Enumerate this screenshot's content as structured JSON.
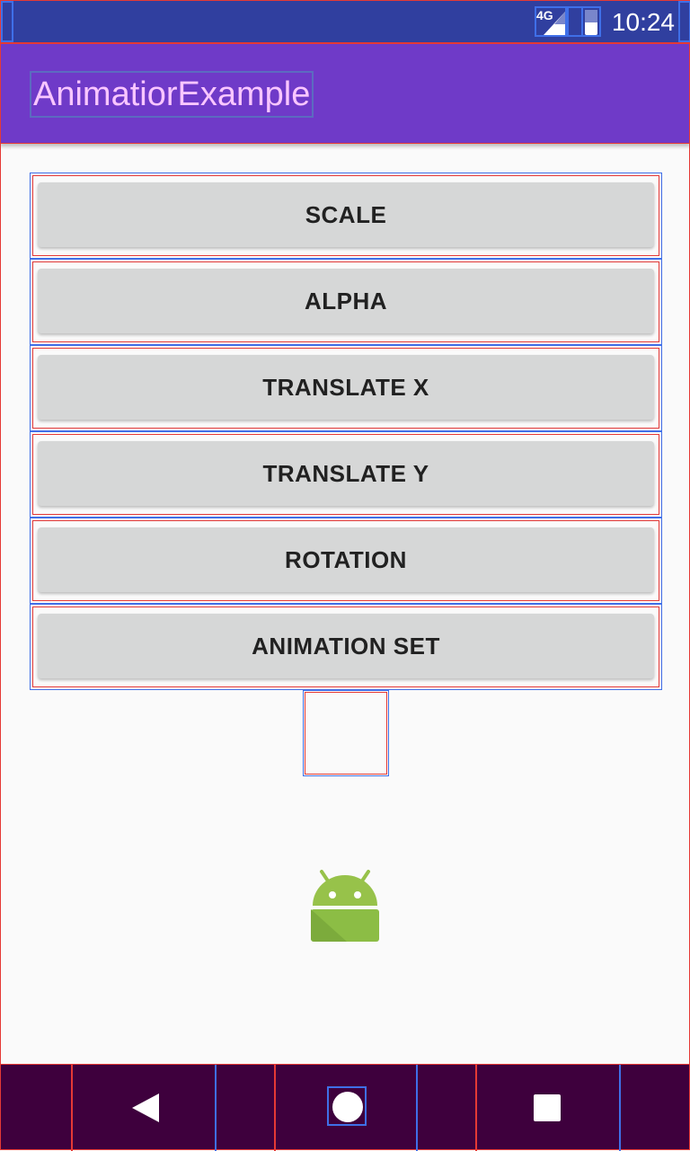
{
  "status_bar": {
    "network": "4G",
    "time": "10:24"
  },
  "app_bar": {
    "title": "AnimatiorExample"
  },
  "buttons": [
    {
      "label": "SCALE"
    },
    {
      "label": "ALPHA"
    },
    {
      "label": "TRANSLATE X"
    },
    {
      "label": "TRANSLATE Y"
    },
    {
      "label": "ROTATION"
    },
    {
      "label": "ANIMATION SET"
    }
  ],
  "image": {
    "icon": "android-robot-icon",
    "color": "#97c24a"
  },
  "nav_bar": {
    "back_icon": "back-triangle-icon",
    "home_icon": "home-circle-icon",
    "recents_icon": "recents-square-icon"
  },
  "colors": {
    "status_bar": "#303f9f",
    "app_bar": "#6f3ac8",
    "title_text": "#f9c6ff",
    "button_bg": "#d6d7d7",
    "nav_bar": "#3e003d"
  }
}
